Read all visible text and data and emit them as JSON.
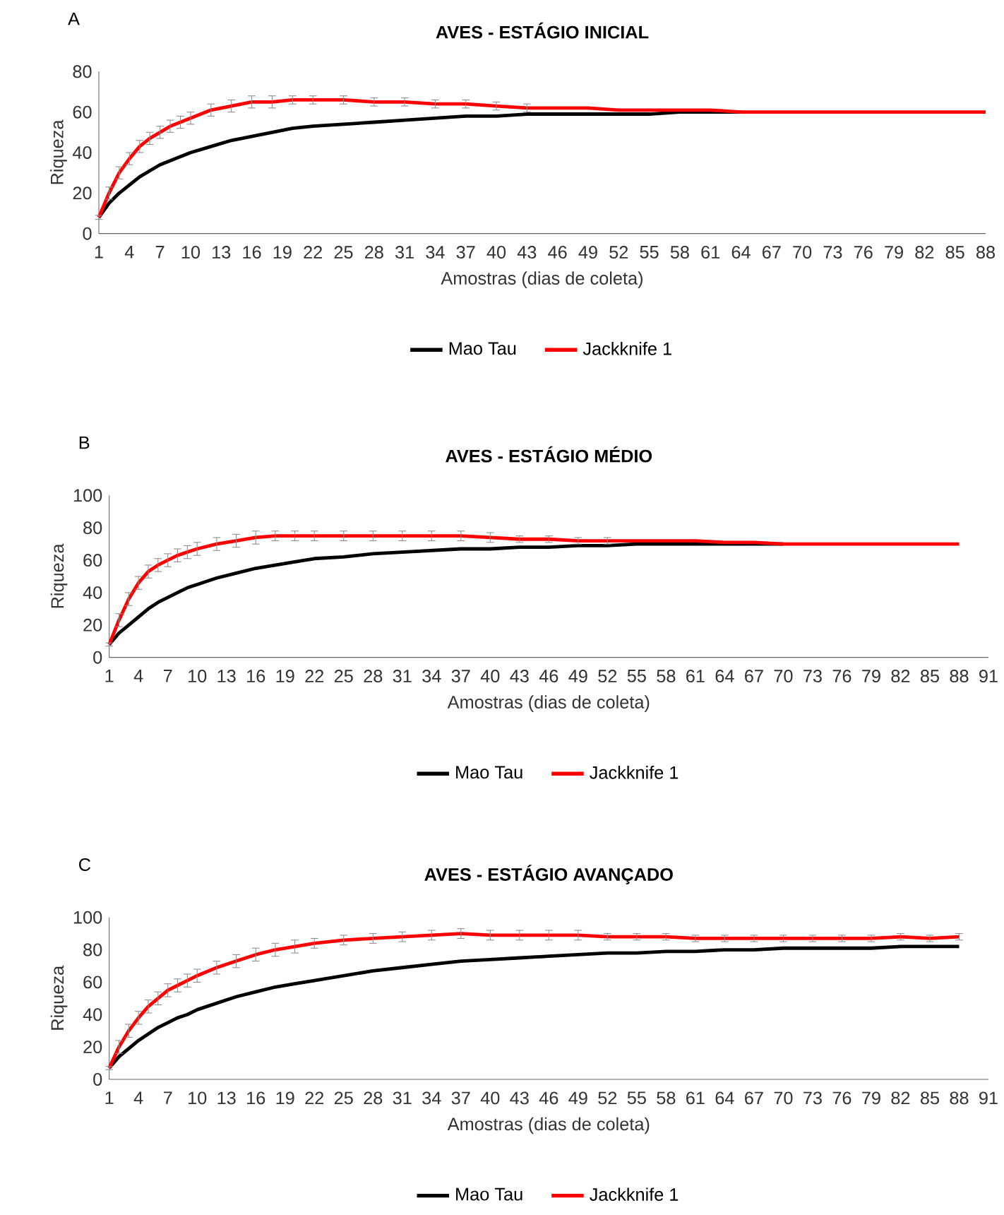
{
  "chart_data": [
    {
      "type": "line",
      "title": "AVES - ESTÁGIO INICIAL",
      "xlabel": "Amostras (dias de coleta)",
      "ylabel": "Riqueza",
      "annotations": [
        "A"
      ],
      "legend": "bottom",
      "x": [
        1,
        2,
        3,
        4,
        5,
        6,
        7,
        8,
        9,
        10,
        12,
        14,
        16,
        18,
        20,
        22,
        25,
        28,
        31,
        34,
        37,
        40,
        43,
        46,
        49,
        52,
        55,
        58,
        61,
        64,
        67,
        70,
        73,
        76,
        79,
        82,
        85,
        88
      ],
      "xlim": [
        1,
        88
      ],
      "xticks": [
        1,
        4,
        7,
        10,
        13,
        16,
        19,
        22,
        25,
        28,
        31,
        34,
        37,
        40,
        43,
        46,
        49,
        52,
        55,
        58,
        61,
        64,
        67,
        70,
        73,
        76,
        79,
        82,
        85,
        88
      ],
      "ylim": [
        0,
        80
      ],
      "yticks": [
        0,
        20,
        40,
        60,
        80
      ],
      "series": [
        {
          "name": "Mao Tau",
          "color": "#000000",
          "values": [
            8,
            15,
            20,
            24,
            28,
            31,
            34,
            36,
            38,
            40,
            43,
            46,
            48,
            50,
            52,
            53,
            54,
            55,
            56,
            57,
            58,
            58,
            59,
            59,
            59,
            59,
            59,
            60,
            60,
            60,
            null,
            null,
            null,
            null,
            null,
            null,
            null,
            null
          ]
        },
        {
          "name": "Jackknife 1",
          "color": "#ff0000",
          "values": [
            8,
            20,
            30,
            37,
            43,
            47,
            50,
            53,
            55,
            57,
            61,
            63,
            65,
            65,
            66,
            66,
            66,
            65,
            65,
            64,
            64,
            63,
            62,
            62,
            62,
            61,
            61,
            61,
            61,
            60,
            60,
            60,
            60,
            60,
            60,
            60,
            60,
            60
          ],
          "errors": [
            1,
            3,
            3,
            3,
            3,
            3,
            3,
            3,
            3,
            3,
            3,
            3,
            3,
            3,
            2,
            2,
            2,
            2,
            2,
            2,
            2,
            2,
            2,
            null,
            null,
            null,
            null,
            null,
            null,
            null,
            null,
            null,
            null,
            null,
            null,
            null,
            null,
            null
          ]
        }
      ]
    },
    {
      "type": "line",
      "title": "AVES - ESTÁGIO MÉDIO",
      "xlabel": "Amostras (dias de coleta)",
      "ylabel": "Riqueza",
      "annotations": [
        "B"
      ],
      "legend": "bottom",
      "x": [
        1,
        2,
        3,
        4,
        5,
        6,
        7,
        8,
        9,
        10,
        12,
        14,
        16,
        18,
        20,
        22,
        25,
        28,
        31,
        34,
        37,
        40,
        43,
        46,
        49,
        52,
        55,
        58,
        61,
        64,
        67,
        70,
        73,
        76,
        79,
        82,
        85,
        88
      ],
      "xlim": [
        1,
        91
      ],
      "xticks": [
        1,
        4,
        7,
        10,
        13,
        16,
        19,
        22,
        25,
        28,
        31,
        34,
        37,
        40,
        43,
        46,
        49,
        52,
        55,
        58,
        61,
        64,
        67,
        70,
        73,
        76,
        79,
        82,
        85,
        88,
        91
      ],
      "ylim": [
        0,
        100
      ],
      "yticks": [
        0,
        20,
        40,
        60,
        80,
        100
      ],
      "series": [
        {
          "name": "Mao Tau",
          "color": "#000000",
          "values": [
            8,
            15,
            20,
            25,
            30,
            34,
            37,
            40,
            43,
            45,
            49,
            52,
            55,
            57,
            59,
            61,
            62,
            64,
            65,
            66,
            67,
            67,
            68,
            68,
            69,
            69,
            70,
            70,
            70,
            70,
            70,
            70,
            null,
            null,
            null,
            null,
            null,
            null
          ]
        },
        {
          "name": "Jackknife 1",
          "color": "#ff0000",
          "values": [
            8,
            23,
            36,
            46,
            53,
            57,
            60,
            63,
            65,
            67,
            70,
            72,
            74,
            75,
            75,
            75,
            75,
            75,
            75,
            75,
            75,
            74,
            73,
            73,
            72,
            72,
            72,
            72,
            72,
            71,
            71,
            70,
            70,
            70,
            70,
            70,
            70,
            70
          ],
          "errors": [
            1,
            4,
            4,
            4,
            4,
            4,
            4,
            4,
            4,
            4,
            4,
            4,
            4,
            3,
            3,
            3,
            3,
            3,
            3,
            3,
            3,
            3,
            2,
            2,
            2,
            2,
            null,
            null,
            null,
            null,
            null,
            null,
            null,
            null,
            null,
            null,
            null,
            null
          ]
        }
      ]
    },
    {
      "type": "line",
      "title": "AVES - ESTÁGIO AVANÇADO",
      "xlabel": "Amostras (dias de coleta)",
      "ylabel": "Riqueza",
      "annotations": [
        "C"
      ],
      "legend": "bottom",
      "x": [
        1,
        2,
        3,
        4,
        5,
        6,
        7,
        8,
        9,
        10,
        12,
        14,
        16,
        18,
        20,
        22,
        25,
        28,
        31,
        34,
        37,
        40,
        43,
        46,
        49,
        52,
        55,
        58,
        61,
        64,
        67,
        70,
        73,
        76,
        79,
        82,
        85,
        88
      ],
      "xlim": [
        1,
        91
      ],
      "xticks": [
        1,
        4,
        7,
        10,
        13,
        16,
        19,
        22,
        25,
        28,
        31,
        34,
        37,
        40,
        43,
        46,
        49,
        52,
        55,
        58,
        61,
        64,
        67,
        70,
        73,
        76,
        79,
        82,
        85,
        88,
        91
      ],
      "ylim": [
        0,
        100
      ],
      "yticks": [
        0,
        20,
        40,
        60,
        80,
        100
      ],
      "series": [
        {
          "name": "Mao Tau",
          "color": "#000000",
          "values": [
            7,
            14,
            19,
            24,
            28,
            32,
            35,
            38,
            40,
            43,
            47,
            51,
            54,
            57,
            59,
            61,
            64,
            67,
            69,
            71,
            73,
            74,
            75,
            76,
            77,
            78,
            78,
            79,
            79,
            80,
            80,
            81,
            81,
            81,
            81,
            82,
            82,
            82
          ]
        },
        {
          "name": "Jackknife 1",
          "color": "#ff0000",
          "values": [
            7,
            20,
            30,
            38,
            45,
            50,
            55,
            58,
            61,
            64,
            69,
            73,
            77,
            80,
            82,
            84,
            86,
            87,
            88,
            89,
            90,
            89,
            89,
            89,
            89,
            88,
            88,
            88,
            87,
            87,
            87,
            87,
            87,
            87,
            87,
            88,
            87,
            88
          ],
          "errors": [
            1,
            4,
            4,
            4,
            4,
            4,
            4,
            4,
            4,
            4,
            4,
            4,
            4,
            4,
            4,
            3,
            3,
            3,
            3,
            3,
            3,
            3,
            3,
            3,
            3,
            2,
            2,
            2,
            2,
            2,
            2,
            2,
            2,
            2,
            2,
            2,
            2,
            2
          ]
        }
      ]
    }
  ]
}
